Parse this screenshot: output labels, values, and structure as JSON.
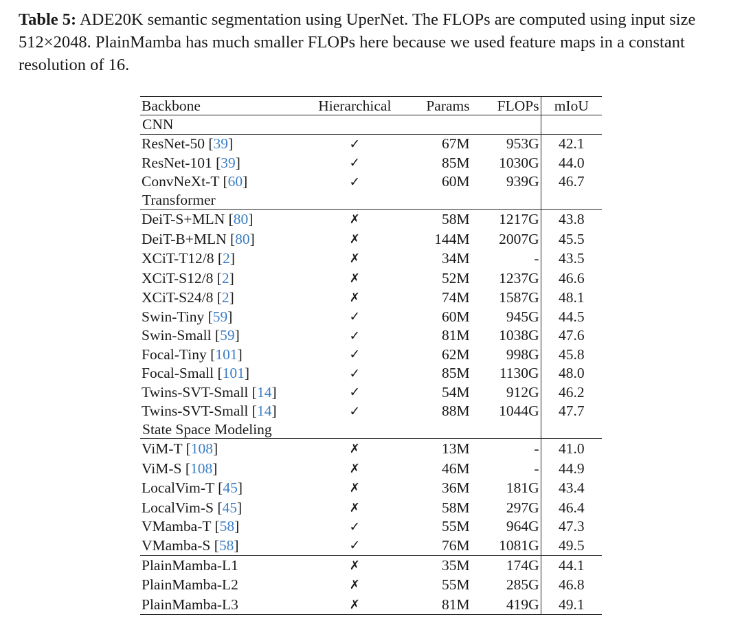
{
  "caption": {
    "label": "Table 5:",
    "text": " ADE20K semantic segmentation using UperNet. The FLOPs are computed using input size 512×2048. PlainMamba has much smaller FLOPs here because we used feature maps in a constant resolution of 16."
  },
  "table": {
    "headers": [
      "Backbone",
      "Hierarchical",
      "Params",
      "FLOPs",
      "mIoU"
    ],
    "sections": [
      {
        "title": "CNN",
        "rows": [
          {
            "name": "ResNet-50",
            "ref": "39",
            "hier": "✓",
            "params": "67M",
            "flops": "953G",
            "miou": "42.1"
          },
          {
            "name": "ResNet-101",
            "ref": "39",
            "hier": "✓",
            "params": "85M",
            "flops": "1030G",
            "miou": "44.0"
          },
          {
            "name": "ConvNeXt-T",
            "ref": "60",
            "hier": "✓",
            "params": "60M",
            "flops": "939G",
            "miou": "46.7"
          }
        ]
      },
      {
        "title": "Transformer",
        "rows": [
          {
            "name": "DeiT-S+MLN",
            "ref": "80",
            "hier": "✗",
            "params": "58M",
            "flops": "1217G",
            "miou": "43.8"
          },
          {
            "name": "DeiT-B+MLN",
            "ref": "80",
            "hier": "✗",
            "params": "144M",
            "flops": "2007G",
            "miou": "45.5"
          },
          {
            "name": "XCiT-T12/8",
            "ref": "2",
            "hier": "✗",
            "params": "34M",
            "flops": "-",
            "miou": "43.5"
          },
          {
            "name": "XCiT-S12/8",
            "ref": "2",
            "hier": "✗",
            "params": "52M",
            "flops": "1237G",
            "miou": "46.6"
          },
          {
            "name": "XCiT-S24/8",
            "ref": "2",
            "hier": "✗",
            "params": "74M",
            "flops": "1587G",
            "miou": "48.1"
          },
          {
            "name": "Swin-Tiny",
            "ref": "59",
            "hier": "✓",
            "params": "60M",
            "flops": "945G",
            "miou": "44.5"
          },
          {
            "name": "Swin-Small",
            "ref": "59",
            "hier": "✓",
            "params": "81M",
            "flops": "1038G",
            "miou": "47.6"
          },
          {
            "name": "Focal-Tiny",
            "ref": "101",
            "hier": "✓",
            "params": "62M",
            "flops": "998G",
            "miou": "45.8"
          },
          {
            "name": "Focal-Small",
            "ref": "101",
            "hier": "✓",
            "params": "85M",
            "flops": "1130G",
            "miou": "48.0"
          },
          {
            "name": "Twins-SVT-Small",
            "ref": "14",
            "hier": "✓",
            "params": "54M",
            "flops": "912G",
            "miou": "46.2"
          },
          {
            "name": "Twins-SVT-Small",
            "ref": "14",
            "hier": "✓",
            "params": "88M",
            "flops": "1044G",
            "miou": "47.7"
          }
        ]
      },
      {
        "title": "State Space Modeling",
        "rows": [
          {
            "name": "ViM-T",
            "ref": "108",
            "hier": "✗",
            "params": "13M",
            "flops": "-",
            "miou": "41.0"
          },
          {
            "name": "ViM-S",
            "ref": "108",
            "hier": "✗",
            "params": "46M",
            "flops": "-",
            "miou": "44.9"
          },
          {
            "name": "LocalVim-T",
            "ref": "45",
            "hier": "✗",
            "params": "36M",
            "flops": "181G",
            "miou": "43.4"
          },
          {
            "name": "LocalVim-S",
            "ref": "45",
            "hier": "✗",
            "params": "58M",
            "flops": "297G",
            "miou": "46.4"
          },
          {
            "name": "VMamba-T",
            "ref": "58",
            "hier": "✓",
            "params": "55M",
            "flops": "964G",
            "miou": "47.3"
          },
          {
            "name": "VMamba-S",
            "ref": "58",
            "hier": "✓",
            "params": "76M",
            "flops": "1081G",
            "miou": "49.5"
          }
        ]
      },
      {
        "title": "",
        "rows": [
          {
            "name": "PlainMamba-L1",
            "ref": "",
            "hier": "✗",
            "params": "35M",
            "flops": "174G",
            "miou": "44.1"
          },
          {
            "name": "PlainMamba-L2",
            "ref": "",
            "hier": "✗",
            "params": "55M",
            "flops": "285G",
            "miou": "46.8"
          },
          {
            "name": "PlainMamba-L3",
            "ref": "",
            "hier": "✗",
            "params": "81M",
            "flops": "419G",
            "miou": "49.1"
          }
        ]
      }
    ]
  }
}
